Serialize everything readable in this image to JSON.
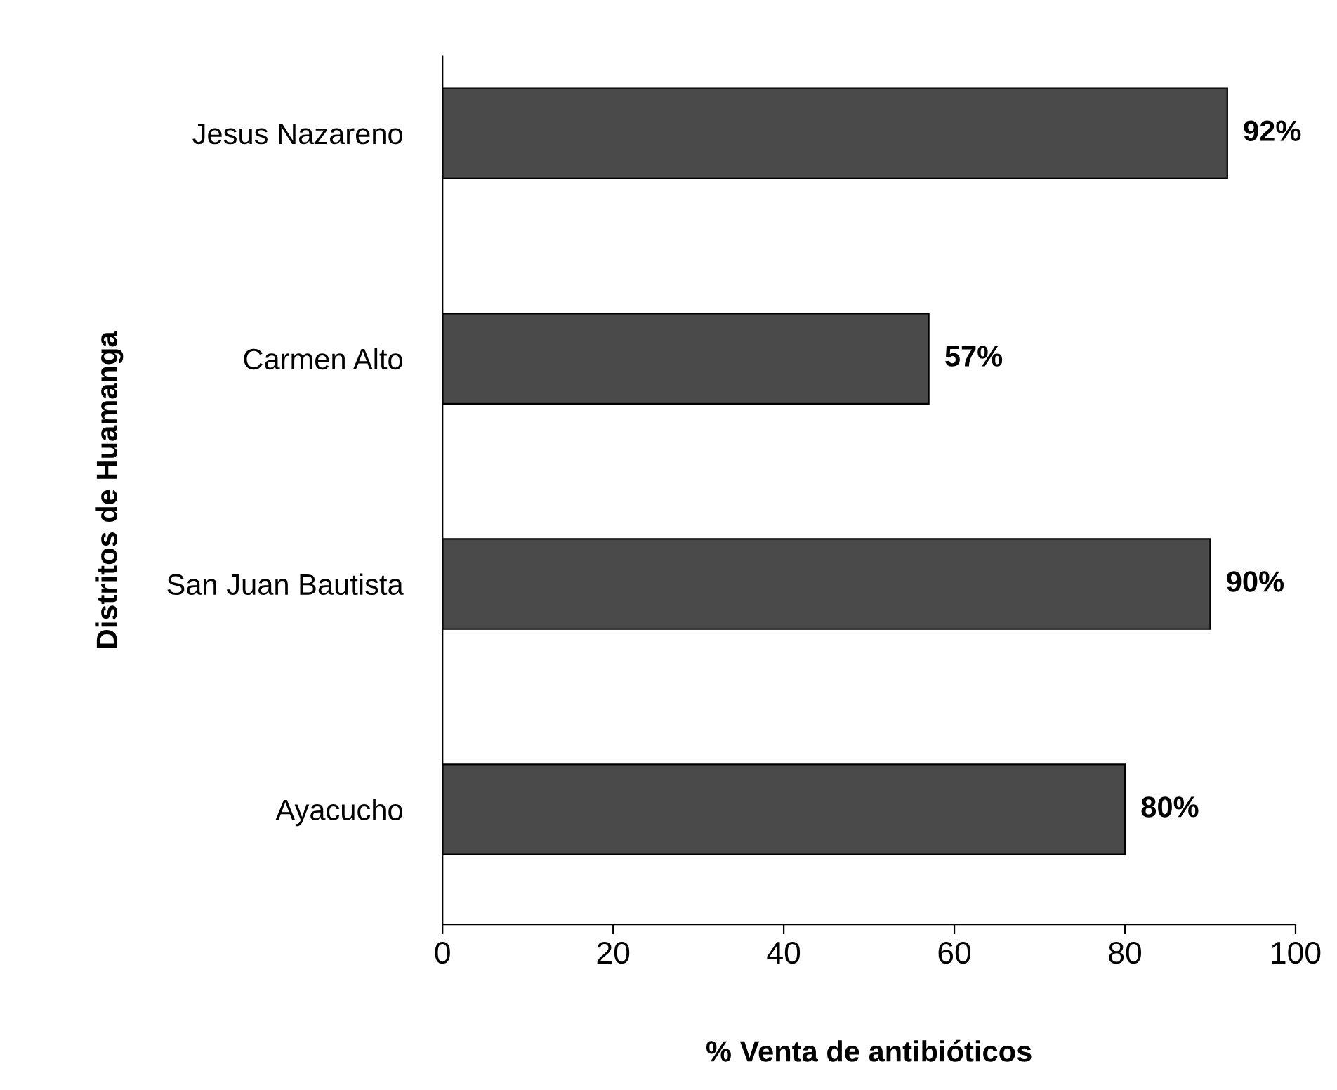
{
  "chart_data": {
    "type": "bar",
    "orientation": "horizontal",
    "xlabel": "% Venta de antibióticos",
    "ylabel": "Distritos de Huamanga",
    "categories": [
      "Jesus Nazareno",
      "Carmen Alto",
      "San Juan Bautista",
      "Ayacucho"
    ],
    "values": [
      92,
      57,
      90,
      80
    ],
    "value_labels": [
      "92%",
      "57%",
      "90%",
      "80%"
    ],
    "color": "#4a4a4a",
    "xlim": [
      0,
      100
    ],
    "xticks": [
      0,
      20,
      40,
      60,
      80,
      100
    ],
    "grid": false,
    "legend": false
  }
}
